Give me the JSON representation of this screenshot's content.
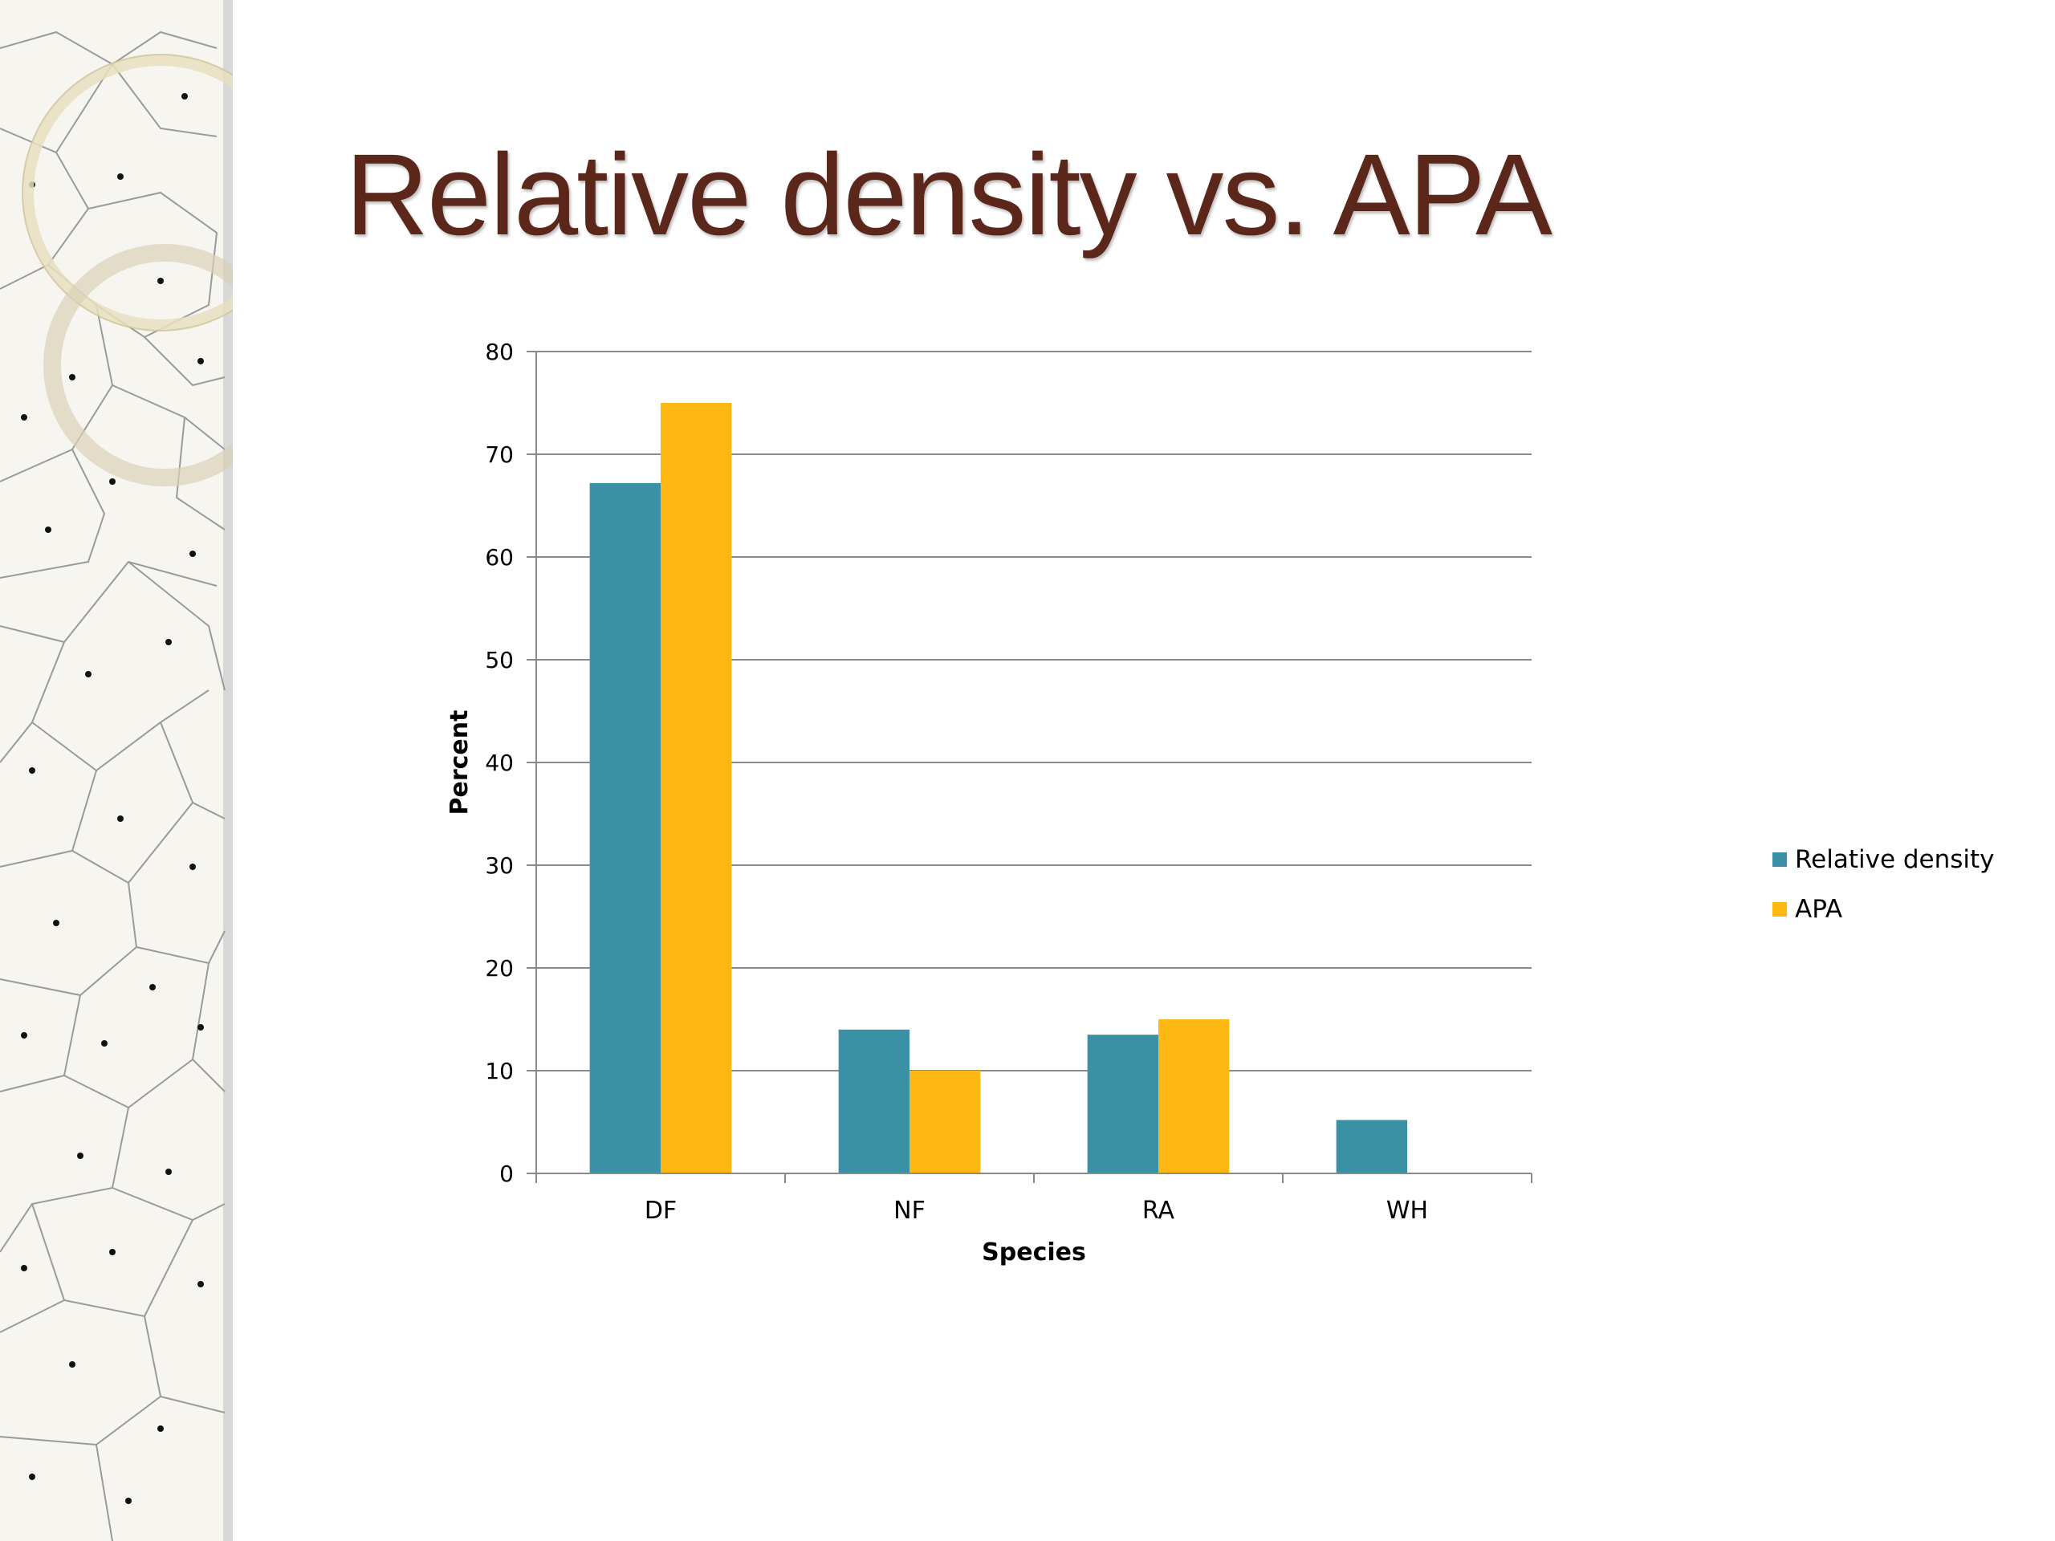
{
  "slide": {
    "title": "Relative density vs. APA"
  },
  "colors": {
    "title": "#5b271b",
    "series_relative_density": "#3a91a6",
    "series_apa": "#fdb813",
    "gridline": "#888888"
  },
  "chart_data": {
    "type": "bar",
    "title": "",
    "xlabel": "Species",
    "ylabel": "Percent",
    "categories": [
      "DF",
      "NF",
      "RA",
      "WH"
    ],
    "series": [
      {
        "name": "Relative density",
        "color": "#3a91a6",
        "values": [
          67.2,
          14.0,
          13.5,
          5.2
        ]
      },
      {
        "name": "APA",
        "color": "#fdb813",
        "values": [
          75.0,
          10.0,
          15.0,
          0
        ]
      }
    ],
    "ylim": [
      0,
      80
    ],
    "yticks": [
      0,
      10,
      20,
      30,
      40,
      50,
      60,
      70,
      80
    ],
    "grid": true,
    "legend_position": "right"
  }
}
